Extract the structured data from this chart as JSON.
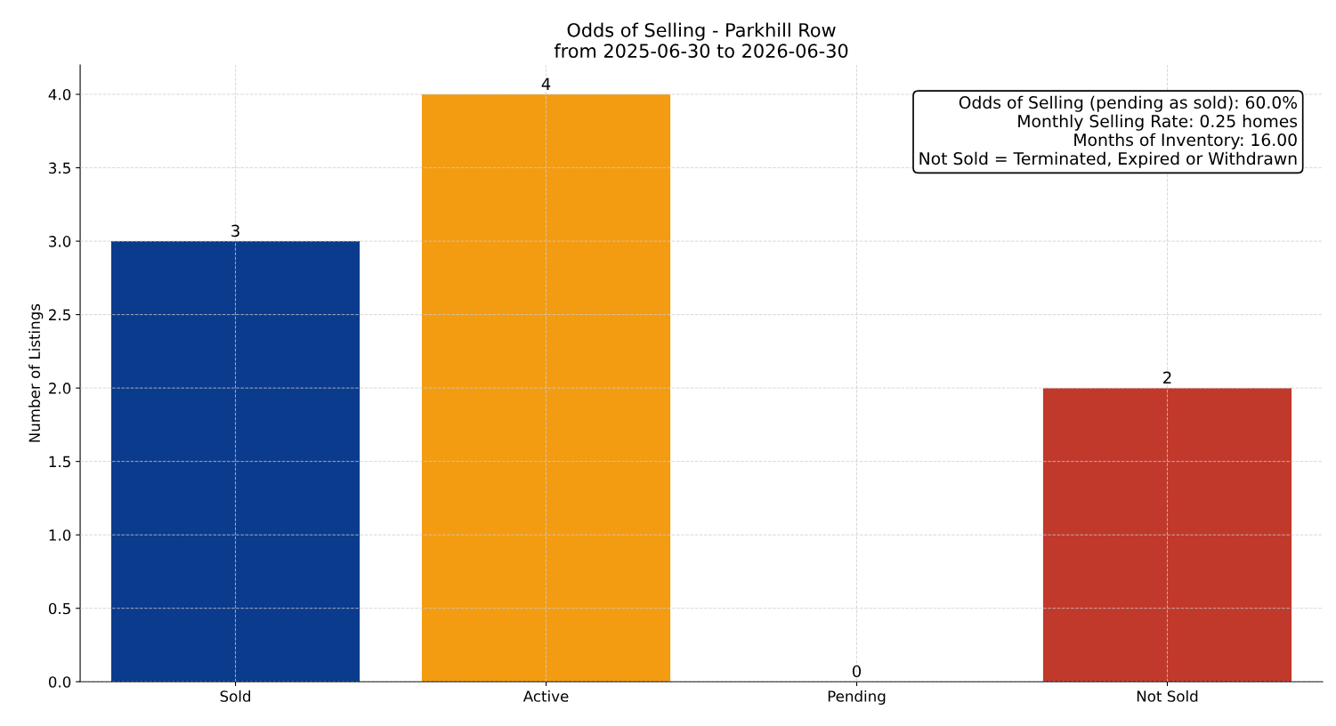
{
  "chart_data": {
    "type": "bar",
    "title": "Odds of Selling - Parkhill Row\nfrom 2025-06-30 to 2026-06-30",
    "ylabel": "Number of Listings",
    "categories": [
      "Sold",
      "Active",
      "Pending",
      "Not Sold"
    ],
    "values": [
      3,
      4,
      0,
      2
    ],
    "colors": [
      "#0b3b8c",
      "#f39c12",
      "#27ae60",
      "#c0392b"
    ],
    "ylim": [
      0,
      4.2
    ],
    "yticks": [
      {
        "value": 0,
        "label": "0.0"
      },
      {
        "value": 0.5,
        "label": "0.5"
      },
      {
        "value": 1,
        "label": "1.0"
      },
      {
        "value": 1.5,
        "label": "1.5"
      },
      {
        "value": 2,
        "label": "2.0"
      },
      {
        "value": 2.5,
        "label": "2.5"
      },
      {
        "value": 3,
        "label": "3.0"
      },
      {
        "value": 3.5,
        "label": "3.5"
      },
      {
        "value": 4,
        "label": "4.0"
      }
    ],
    "grid": true,
    "data_labels": true,
    "legend": false,
    "annotations": [
      "Odds of Selling (pending as sold): 60.0%",
      "Monthly Selling Rate: 0.25 homes",
      "Months of Inventory: 16.00",
      "Not Sold = Terminated, Expired or Withdrawn"
    ]
  }
}
